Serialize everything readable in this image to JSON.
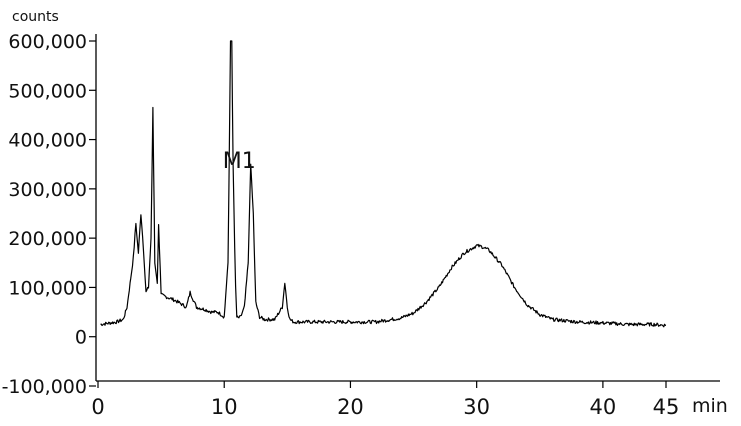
{
  "chart_data": {
    "type": "line",
    "title": "",
    "xlabel": "",
    "ylabel": "",
    "y_unit": "counts",
    "x_unit": "min",
    "xlim": [
      0,
      45
    ],
    "ylim": [
      -100000,
      600000
    ],
    "x_ticks": [
      0,
      10,
      20,
      30,
      40,
      45
    ],
    "x_tick_labels": [
      "0",
      "10",
      "20",
      "30",
      "40",
      "45"
    ],
    "y_ticks": [
      -100000,
      0,
      100000,
      200000,
      300000,
      400000,
      500000,
      600000
    ],
    "y_tick_labels": [
      "-100,000",
      "0",
      "100,000",
      "200,000",
      "300,000",
      "400,000",
      "500,000",
      "600,000"
    ],
    "grid": false,
    "legend": "none",
    "line_color": "#000000",
    "annotations": [
      {
        "text": "M1",
        "x": 12.3,
        "y": 350000
      }
    ],
    "series": [
      {
        "x": [
          0.2,
          1.5,
          2.0,
          2.3,
          2.6,
          2.8,
          3.0,
          3.2,
          3.4,
          3.6,
          3.8,
          4.0,
          4.2,
          4.35,
          4.5,
          4.7,
          4.8,
          5.0,
          5.5,
          6.0,
          6.5,
          7.0,
          7.3,
          7.8,
          8.5,
          9.0,
          9.5,
          10.0,
          10.3,
          10.5,
          10.6,
          10.7,
          10.9,
          11.0,
          11.1,
          11.3,
          11.6,
          11.9,
          12.1,
          12.3,
          12.5,
          12.8,
          13.2,
          14.0,
          14.6,
          14.8,
          15.0,
          15.2,
          15.5,
          16.0,
          18.0,
          20.0,
          22.0,
          24.0,
          25.0,
          26.0,
          27.0,
          28.0,
          29.0,
          30.0,
          30.5,
          31.0,
          32.0,
          33.0,
          34.0,
          35.0,
          36.0,
          38.0,
          40.0,
          42.0,
          44.0,
          45.0
        ],
        "y": [
          25000,
          30000,
          35000,
          60000,
          120000,
          160000,
          230000,
          170000,
          250000,
          180000,
          90000,
          100000,
          200000,
          465000,
          150000,
          110000,
          230000,
          85000,
          80000,
          75000,
          68000,
          60000,
          90000,
          60000,
          55000,
          50000,
          50000,
          40000,
          150000,
          600000,
          600000,
          350000,
          100000,
          40000,
          38000,
          40000,
          60000,
          150000,
          350000,
          250000,
          70000,
          40000,
          35000,
          35000,
          60000,
          110000,
          60000,
          35000,
          30000,
          30000,
          30000,
          30000,
          30000,
          38000,
          48000,
          70000,
          100000,
          140000,
          170000,
          185000,
          182000,
          175000,
          145000,
          100000,
          65000,
          45000,
          35000,
          30000,
          28000,
          25000,
          25000,
          23000
        ]
      }
    ]
  }
}
